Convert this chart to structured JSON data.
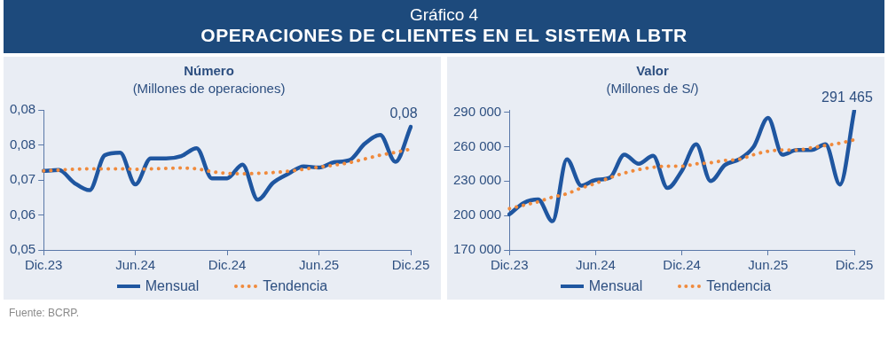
{
  "chart_data": [
    {
      "type": "other",
      "title": "Gráfico 4",
      "subtitle": "OPERACIONES DE CLIENTES EN EL SISTEMA LBTR"
    },
    {
      "type": "line",
      "title": "Número",
      "subtitle": "(Millones de operaciones)",
      "legend": "bottom",
      "grid": false,
      "categories": [
        "Dic.23",
        null,
        null,
        null,
        null,
        null,
        "Jun.24",
        null,
        null,
        null,
        null,
        null,
        "Dic.24",
        null,
        null,
        null,
        null,
        null,
        "Jun.25",
        null,
        null,
        null,
        null,
        null,
        "Dic.25"
      ],
      "ylim": [
        0.05,
        0.084
      ],
      "yticks": [
        {
          "value": 0.05,
          "label": "0,05"
        },
        {
          "value": 0.0585,
          "label": "0,06"
        },
        {
          "value": 0.067,
          "label": "0,07"
        },
        {
          "value": 0.0755,
          "label": "0,08"
        },
        {
          "value": 0.084,
          "label": "0,08"
        }
      ],
      "series": [
        {
          "name": "Mensual",
          "color": "#1f56a0",
          "line_style": "solid",
          "values": [
            0.0692,
            0.0694,
            0.0663,
            0.0645,
            0.073,
            0.0736,
            0.0659,
            0.0722,
            0.0722,
            0.0728,
            0.0747,
            0.0674,
            0.0674,
            0.0707,
            0.0622,
            0.0663,
            0.0685,
            0.0703,
            0.07,
            0.0713,
            0.0718,
            0.0758,
            0.0779,
            0.0714,
            0.0799
          ],
          "value_labels": [
            null,
            null,
            null,
            null,
            null,
            null,
            null,
            null,
            null,
            null,
            null,
            null,
            null,
            null,
            null,
            null,
            null,
            null,
            null,
            null,
            null,
            null,
            null,
            null,
            "0,08"
          ]
        },
        {
          "name": "Tendencia",
          "color": "#f08a3c",
          "line_style": "dotted",
          "values": [
            0.0692,
            0.0694,
            0.0696,
            0.0697,
            0.0697,
            0.0697,
            0.0696,
            0.0697,
            0.0698,
            0.0699,
            0.0697,
            0.069,
            0.0686,
            0.0685,
            0.0686,
            0.0688,
            0.0691,
            0.0696,
            0.0701,
            0.0706,
            0.0712,
            0.0721,
            0.073,
            0.0737,
            0.0745
          ]
        }
      ]
    },
    {
      "type": "line",
      "title": "Valor",
      "subtitle": "(Millones de S/)",
      "legend": "bottom",
      "grid": false,
      "categories": [
        "Dic.23",
        null,
        null,
        null,
        null,
        null,
        "Jun.24",
        null,
        null,
        null,
        null,
        null,
        "Dic.24",
        null,
        null,
        null,
        null,
        null,
        "Jun.25",
        null,
        null,
        null,
        null,
        null,
        "Dic.25"
      ],
      "ylim": [
        170000,
        292000
      ],
      "yticks": [
        {
          "value": 170000,
          "label": "170 000"
        },
        {
          "value": 200000,
          "label": "200 000"
        },
        {
          "value": 230000,
          "label": "230 000"
        },
        {
          "value": 260000,
          "label": "260 000"
        },
        {
          "value": 290000,
          "label": "290 000"
        }
      ],
      "series": [
        {
          "name": "Mensual",
          "color": "#1f56a0",
          "line_style": "solid",
          "values": [
            201000,
            211000,
            214000,
            195000,
            249000,
            226000,
            231000,
            233000,
            253000,
            245000,
            252000,
            224000,
            239000,
            262000,
            230000,
            244000,
            249000,
            260000,
            285000,
            253000,
            257000,
            257000,
            262000,
            227000,
            291465
          ],
          "value_labels": [
            null,
            null,
            null,
            null,
            null,
            null,
            null,
            null,
            null,
            null,
            null,
            null,
            null,
            null,
            null,
            null,
            null,
            null,
            null,
            null,
            null,
            null,
            null,
            null,
            "291 465"
          ]
        },
        {
          "name": "Tendencia",
          "color": "#f08a3c",
          "line_style": "dotted",
          "values": [
            206000,
            209000,
            212000,
            216000,
            219000,
            224000,
            228000,
            233000,
            237000,
            240000,
            242000,
            243000,
            243000,
            245000,
            246000,
            248000,
            249000,
            253000,
            256000,
            257000,
            257000,
            259000,
            261000,
            263000,
            266000
          ]
        }
      ]
    },
    {
      "type": "other",
      "annotations": [
        "Fuente: BCRP."
      ]
    }
  ]
}
